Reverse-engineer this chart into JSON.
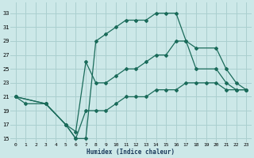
{
  "xlabel": "Humidex (Indice chaleur)",
  "bg_color": "#cce8e8",
  "grid_color": "#aacfcf",
  "line_color": "#1a6b5a",
  "xlim": [
    -0.5,
    23.5
  ],
  "ylim": [
    14.5,
    34.5
  ],
  "xticks": [
    0,
    1,
    2,
    3,
    4,
    5,
    6,
    7,
    8,
    9,
    10,
    11,
    12,
    13,
    14,
    15,
    16,
    17,
    18,
    19,
    20,
    21,
    22,
    23
  ],
  "yticks": [
    15,
    17,
    19,
    21,
    23,
    25,
    27,
    29,
    31,
    33
  ],
  "line1_x": [
    0,
    1,
    3,
    5,
    6,
    7,
    8,
    9,
    10,
    11,
    12,
    13,
    14,
    15,
    16,
    17,
    18,
    20,
    21,
    22,
    23
  ],
  "line1_y": [
    21,
    20,
    20,
    17,
    15,
    15,
    29,
    30,
    31,
    32,
    32,
    32,
    33,
    33,
    33,
    29,
    25,
    25,
    23,
    22,
    22
  ],
  "line2_x": [
    0,
    3,
    5,
    6,
    7,
    8,
    9,
    10,
    11,
    12,
    13,
    14,
    15,
    16,
    17,
    18,
    20,
    21,
    22,
    23
  ],
  "line2_y": [
    21,
    20,
    17,
    16,
    26,
    23,
    23,
    24,
    25,
    25,
    26,
    27,
    27,
    29,
    29,
    28,
    28,
    25,
    23,
    22
  ],
  "line3_x": [
    0,
    3,
    5,
    6,
    7,
    8,
    9,
    10,
    11,
    12,
    13,
    14,
    15,
    16,
    17,
    18,
    19,
    20,
    21,
    22,
    23
  ],
  "line3_y": [
    21,
    20,
    17,
    15,
    19,
    19,
    19,
    20,
    21,
    21,
    21,
    22,
    22,
    22,
    23,
    23,
    23,
    23,
    22,
    22,
    22
  ]
}
